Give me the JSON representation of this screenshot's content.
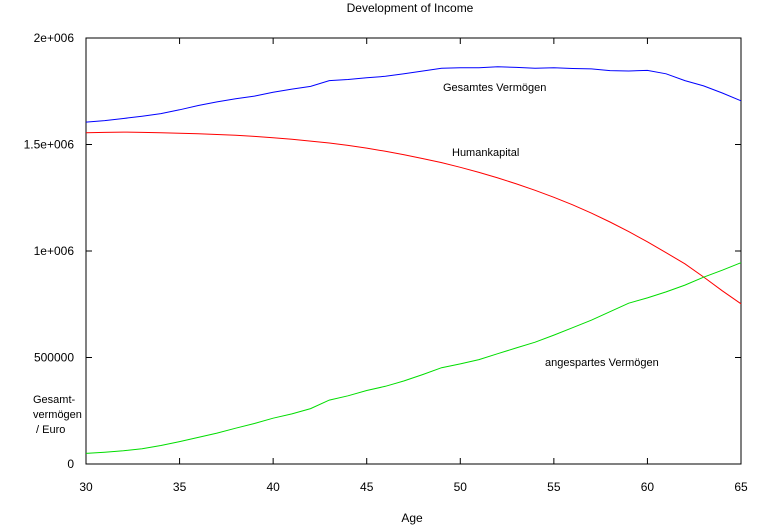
{
  "chart_data": {
    "type": "line",
    "title": "Development of Income",
    "xlabel": "Age",
    "ylabel_lines": [
      "Gesamt-",
      "vermögen",
      "/ Euro"
    ],
    "xlim": [
      30,
      65
    ],
    "ylim": [
      0,
      2000000
    ],
    "xticks": [
      "30",
      "35",
      "40",
      "45",
      "50",
      "55",
      "60",
      "65"
    ],
    "yticks": [
      "0",
      "500000",
      "1e+006",
      "1.5e+006",
      "2e+006"
    ],
    "grid": false,
    "x": [
      30,
      31,
      32,
      33,
      34,
      35,
      36,
      37,
      38,
      39,
      40,
      41,
      42,
      43,
      44,
      45,
      46,
      47,
      48,
      49,
      50,
      51,
      52,
      53,
      54,
      55,
      56,
      57,
      58,
      59,
      60,
      61,
      62,
      63,
      64,
      65
    ],
    "series": [
      {
        "name": "Gesamtes Vermögen",
        "color": "#0000ff",
        "values": [
          1605000,
          1612000,
          1622000,
          1633000,
          1645000,
          1663000,
          1683000,
          1700000,
          1715000,
          1727000,
          1745000,
          1760000,
          1773000,
          1800000,
          1805000,
          1813000,
          1820000,
          1832000,
          1845000,
          1858000,
          1860000,
          1860000,
          1865000,
          1862000,
          1858000,
          1860000,
          1857000,
          1855000,
          1847000,
          1845000,
          1848000,
          1832000,
          1800000,
          1775000,
          1742000,
          1705000
        ]
      },
      {
        "name": "Humankapital",
        "color": "#ff0000",
        "values": [
          1555000,
          1557000,
          1558000,
          1557000,
          1555000,
          1553000,
          1550000,
          1547000,
          1543000,
          1538000,
          1532000,
          1525000,
          1516000,
          1507000,
          1496000,
          1483000,
          1468000,
          1452000,
          1434000,
          1415000,
          1393000,
          1369000,
          1343000,
          1315000,
          1285000,
          1252000,
          1217000,
          1178000,
          1136000,
          1091000,
          1043000,
          992000,
          940000,
          878000,
          813000,
          752000
        ]
      },
      {
        "name": "angespartes Vermögen",
        "color": "#00dd00",
        "values": [
          50000,
          55000,
          62000,
          72000,
          87000,
          105000,
          125000,
          145000,
          168000,
          190000,
          215000,
          235000,
          260000,
          300000,
          320000,
          345000,
          365000,
          390000,
          420000,
          452000,
          470000,
          490000,
          518000,
          545000,
          572000,
          605000,
          640000,
          675000,
          715000,
          755000,
          780000,
          808000,
          840000,
          877000,
          910000,
          945000
        ]
      }
    ]
  }
}
